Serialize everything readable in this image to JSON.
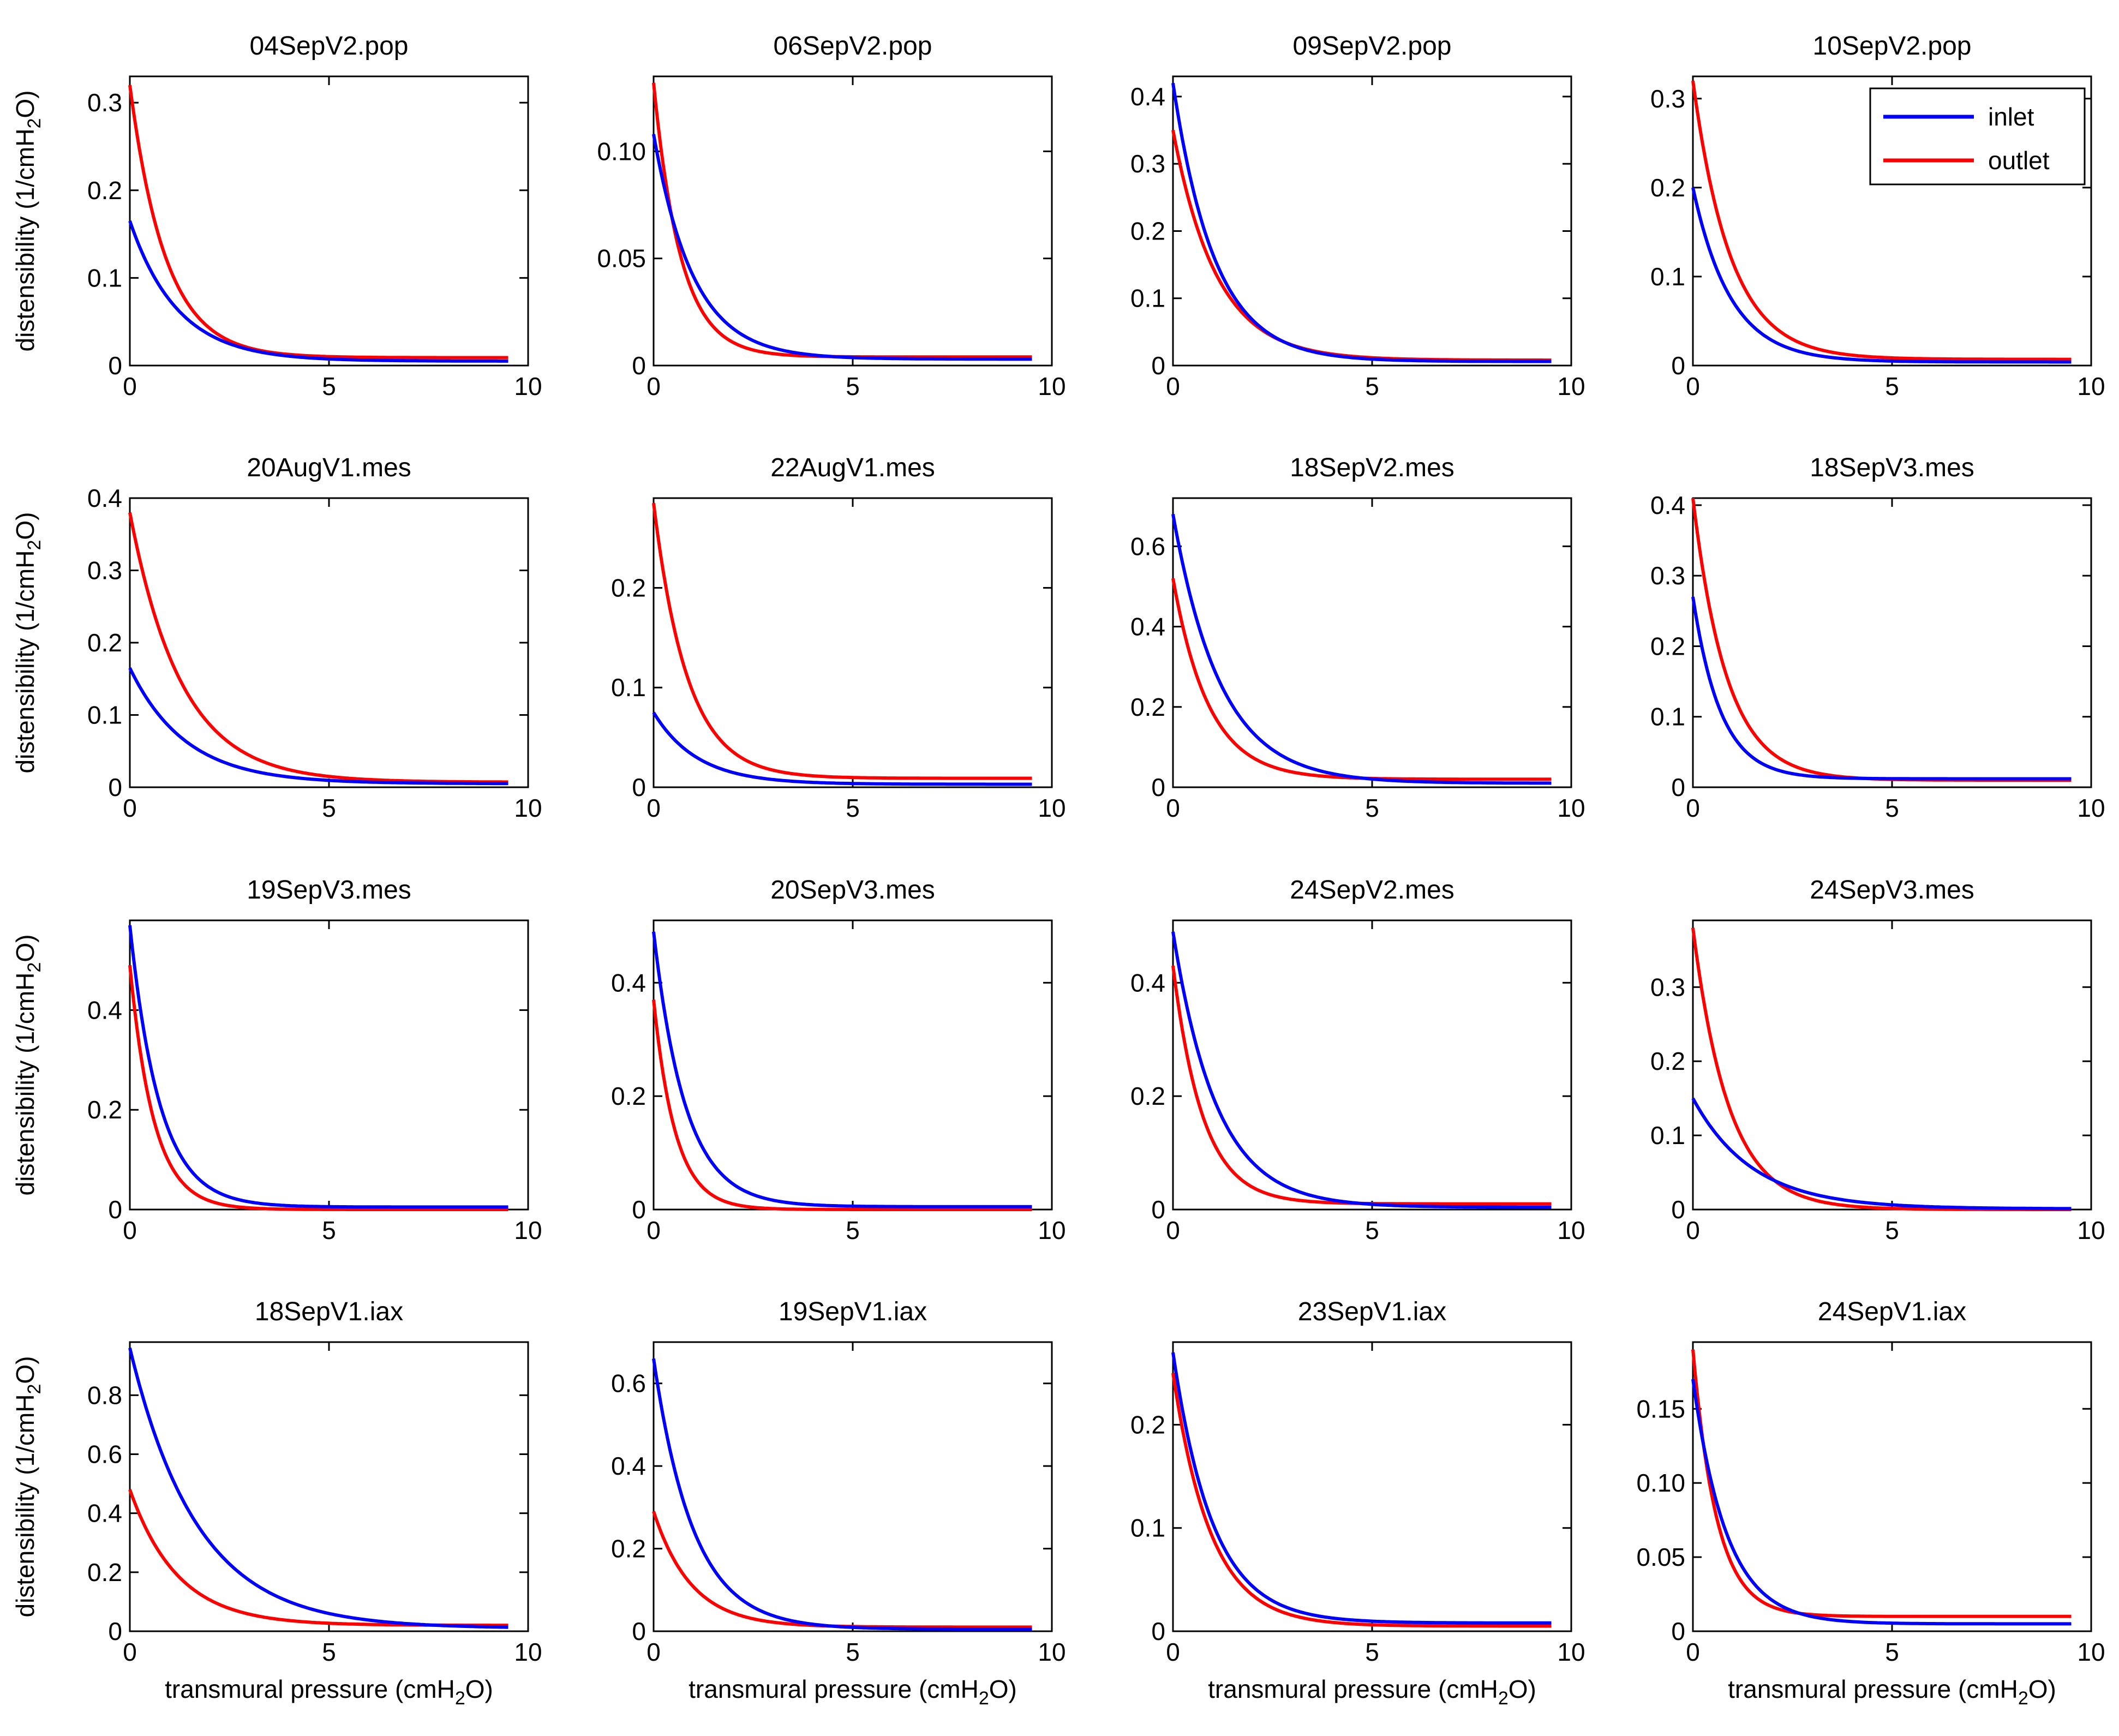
{
  "chart_data": {
    "type": "line",
    "layout": "4x4 grid of small multiples",
    "xlabel_main": "transmural pressure (cmH",
    "xlabel_sub": "2",
    "xlabel_end": "O)",
    "ylabel_main": "distensibility (1/cmH",
    "ylabel_sub": "2",
    "ylabel_end": "O)",
    "legend": {
      "placement": "top-right of panel 4",
      "entries": [
        {
          "name": "inlet",
          "color": "#0000ff"
        },
        {
          "name": "outlet",
          "color": "#ff0000"
        }
      ]
    },
    "colors": {
      "inlet": "#0000ff",
      "outlet": "#ff0000"
    },
    "xlim": [
      0,
      10
    ],
    "xticks": [
      0,
      5,
      10
    ],
    "xlast": 9.5,
    "panels": [
      {
        "title": "04SepV2.pop",
        "ylim": [
          0,
          0.33
        ],
        "yticks": [
          0,
          0.1,
          0.2,
          0.3
        ],
        "yfmt": 1,
        "inlet": {
          "a": 0.165,
          "k": 1.2,
          "c": 0.005
        },
        "outlet": {
          "a": 0.32,
          "k": 0.9,
          "c": 0.009
        }
      },
      {
        "title": "06SepV2.pop",
        "ylim": [
          0,
          0.135
        ],
        "yticks": [
          0,
          0.05,
          0.1
        ],
        "yfmt": 2,
        "inlet": {
          "a": 0.108,
          "k": 1.0,
          "c": 0.003
        },
        "outlet": {
          "a": 0.132,
          "k": 0.68,
          "c": 0.004
        }
      },
      {
        "title": "09SepV2.pop",
        "ylim": [
          0,
          0.43
        ],
        "yticks": [
          0,
          0.1,
          0.2,
          0.3,
          0.4
        ],
        "yfmt": 1,
        "inlet": {
          "a": 0.42,
          "k": 1.05,
          "c": 0.006
        },
        "outlet": {
          "a": 0.35,
          "k": 1.1,
          "c": 0.008
        }
      },
      {
        "title": "10SepV2.pop",
        "ylim": [
          0,
          0.325
        ],
        "yticks": [
          0,
          0.1,
          0.2,
          0.3
        ],
        "yfmt": 1,
        "inlet": {
          "a": 0.2,
          "k": 0.95,
          "c": 0.004
        },
        "outlet": {
          "a": 0.32,
          "k": 0.95,
          "c": 0.007
        },
        "legend": true
      },
      {
        "title": "20AugV1.mes",
        "ylim": [
          0,
          0.4
        ],
        "yticks": [
          0,
          0.1,
          0.2,
          0.3,
          0.4
        ],
        "yfmt": 1,
        "inlet": {
          "a": 0.165,
          "k": 1.4,
          "c": 0.005
        },
        "outlet": {
          "a": 0.38,
          "k": 1.3,
          "c": 0.007
        }
      },
      {
        "title": "22AugV1.mes",
        "ylim": [
          0,
          0.29
        ],
        "yticks": [
          0,
          0.1,
          0.2
        ],
        "yfmt": 1,
        "inlet": {
          "a": 0.075,
          "k": 1.1,
          "c": 0.003
        },
        "outlet": {
          "a": 0.285,
          "k": 0.85,
          "c": 0.009
        }
      },
      {
        "title": "18SepV2.mes",
        "ylim": [
          0,
          0.72
        ],
        "yticks": [
          0,
          0.2,
          0.4,
          0.6
        ],
        "yfmt": 1,
        "inlet": {
          "a": 0.68,
          "k": 1.2,
          "c": 0.01
        },
        "outlet": {
          "a": 0.52,
          "k": 0.9,
          "c": 0.02
        }
      },
      {
        "title": "18SepV3.mes",
        "ylim": [
          0,
          0.41
        ],
        "yticks": [
          0,
          0.1,
          0.2,
          0.3,
          0.4
        ],
        "yfmt": 1,
        "inlet": {
          "a": 0.27,
          "k": 0.7,
          "c": 0.012
        },
        "outlet": {
          "a": 0.41,
          "k": 0.85,
          "c": 0.01
        }
      },
      {
        "title": "19SepV3.mes",
        "ylim": [
          0,
          0.58
        ],
        "yticks": [
          0,
          0.2,
          0.4
        ],
        "yfmt": 1,
        "inlet": {
          "a": 0.57,
          "k": 0.75,
          "c": 0.005
        },
        "outlet": {
          "a": 0.49,
          "k": 0.6,
          "c": 0.0
        }
      },
      {
        "title": "20SepV3.mes",
        "ylim": [
          0,
          0.51
        ],
        "yticks": [
          0,
          0.2,
          0.4
        ],
        "yfmt": 1,
        "inlet": {
          "a": 0.49,
          "k": 0.8,
          "c": 0.005
        },
        "outlet": {
          "a": 0.37,
          "k": 0.55,
          "c": 0.0
        }
      },
      {
        "title": "24SepV2.mes",
        "ylim": [
          0,
          0.51
        ],
        "yticks": [
          0,
          0.2,
          0.4
        ],
        "yfmt": 1,
        "inlet": {
          "a": 0.49,
          "k": 1.1,
          "c": 0.004
        },
        "outlet": {
          "a": 0.43,
          "k": 0.75,
          "c": 0.01
        }
      },
      {
        "title": "24SepV3.mes",
        "ylim": [
          0,
          0.39
        ],
        "yticks": [
          0,
          0.1,
          0.2,
          0.3
        ],
        "yfmt": 1,
        "inlet": {
          "a": 0.15,
          "k": 1.5,
          "c": 0.001
        },
        "outlet": {
          "a": 0.38,
          "k": 0.9,
          "c": 0.0
        }
      },
      {
        "title": "18SepV1.iax",
        "ylim": [
          0,
          0.98
        ],
        "yticks": [
          0,
          0.2,
          0.4,
          0.6,
          0.8
        ],
        "yfmt": 1,
        "inlet": {
          "a": 0.96,
          "k": 1.7,
          "c": 0.01
        },
        "outlet": {
          "a": 0.48,
          "k": 1.2,
          "c": 0.02
        }
      },
      {
        "title": "19SepV1.iax",
        "ylim": [
          0,
          0.7
        ],
        "yticks": [
          0,
          0.2,
          0.4,
          0.6
        ],
        "yfmt": 1,
        "inlet": {
          "a": 0.66,
          "k": 1.0,
          "c": 0.005
        },
        "outlet": {
          "a": 0.29,
          "k": 0.95,
          "c": 0.01
        }
      },
      {
        "title": "23SepV1.iax",
        "ylim": [
          0,
          0.28
        ],
        "yticks": [
          0,
          0.1,
          0.2
        ],
        "yfmt": 1,
        "inlet": {
          "a": 0.27,
          "k": 1.0,
          "c": 0.008
        },
        "outlet": {
          "a": 0.25,
          "k": 0.95,
          "c": 0.005
        }
      },
      {
        "title": "24SepV1.iax",
        "ylim": [
          0,
          0.195
        ],
        "yticks": [
          0,
          0.05,
          0.1,
          0.15
        ],
        "yfmt": 2,
        "inlet": {
          "a": 0.17,
          "k": 0.85,
          "c": 0.005
        },
        "outlet": {
          "a": 0.19,
          "k": 0.6,
          "c": 0.01
        }
      }
    ]
  }
}
